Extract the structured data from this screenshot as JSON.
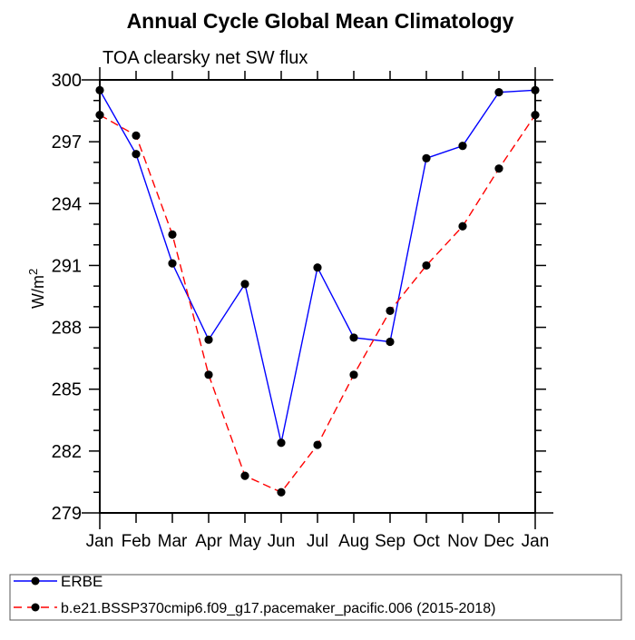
{
  "title": "Annual Cycle Global Mean Climatology",
  "subtitle": "TOA clearsky net SW flux",
  "y_axis": {
    "label_base": "W/m",
    "label_exponent": "2",
    "full_label": "W/m2"
  },
  "chart_data": {
    "type": "line",
    "title": "Annual Cycle Global Mean Climatology",
    "subtitle": "TOA clearsky net SW flux",
    "xlabel": "",
    "ylabel": "W/m2",
    "categories": [
      "Jan",
      "Feb",
      "Mar",
      "Apr",
      "May",
      "Jun",
      "Jul",
      "Aug",
      "Sep",
      "Oct",
      "Nov",
      "Dec",
      "Jan"
    ],
    "ylim": [
      279,
      300
    ],
    "ytick_labels": [
      279,
      282,
      285,
      288,
      291,
      294,
      297,
      300
    ],
    "ytick_minor_step": 1,
    "grid": "off",
    "legend_position": "bottom",
    "frame_color": "#000000",
    "background_color": "#ffffff",
    "series": [
      {
        "name": "ERBE",
        "color": "#0000ff",
        "line_style": "solid",
        "marker": "circle",
        "marker_color": "#000000",
        "values": [
          299.5,
          296.4,
          291.1,
          287.4,
          290.1,
          282.4,
          290.9,
          287.5,
          287.3,
          296.2,
          296.8,
          299.4,
          299.5
        ]
      },
      {
        "name": "b.e21.BSSP370cmip6.f09_g17.pacemaker_pacific.006 (2015-2018)",
        "color": "#ff0000",
        "line_style": "dashed",
        "marker": "circle",
        "marker_color": "#000000",
        "values": [
          298.3,
          297.3,
          292.5,
          285.7,
          280.8,
          280.0,
          282.3,
          285.7,
          288.8,
          291.0,
          292.9,
          295.7,
          298.3
        ]
      }
    ]
  }
}
